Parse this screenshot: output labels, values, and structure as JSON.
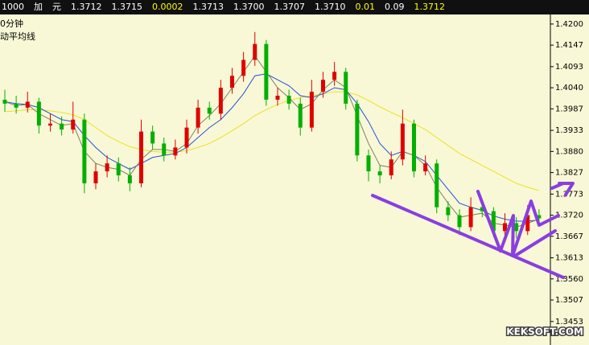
{
  "header": {
    "items": [
      {
        "text": "1000",
        "color": "#ffffff"
      },
      {
        "text": "加",
        "color": "#ffffff"
      },
      {
        "text": "元",
        "color": "#ffffff"
      },
      {
        "text": "1.3712",
        "color": "#ffffff"
      },
      {
        "text": "1.3715",
        "color": "#ffffff"
      },
      {
        "text": "0.0002",
        "color": "#ffff00"
      },
      {
        "text": "1.3713",
        "color": "#ffffff"
      },
      {
        "text": "1.3700",
        "color": "#ffffff"
      },
      {
        "text": "1.3707",
        "color": "#ffffff"
      },
      {
        "text": "1.3710",
        "color": "#ffffff"
      },
      {
        "text": "0.01",
        "color": "#ffff00"
      },
      {
        "text": "0.09",
        "color": "#ffffff"
      },
      {
        "text": "1.3712",
        "color": "#ffff00"
      }
    ]
  },
  "chart_data": {
    "type": "candlestick",
    "annotations": [
      "0分钟",
      "动平均线"
    ],
    "watermark": "KEKSOFT.COM",
    "up_color": "#e00000",
    "down_color": "#00b000",
    "open": [
      1.401,
      1.4,
      1.399,
      1.4005,
      1.3945,
      1.395,
      1.3935,
      1.396,
      1.38,
      1.383,
      1.385,
      1.382,
      1.38,
      1.393,
      1.39,
      1.387,
      1.389,
      1.394,
      1.399,
      1.3975,
      1.404,
      1.407,
      1.411,
      1.415,
      1.401,
      1.402,
      1.4,
      1.394,
      1.403,
      1.406,
      1.408,
      1.4,
      1.387,
      1.383,
      1.382,
      1.386,
      1.395,
      1.383,
      1.385,
      1.374,
      1.372,
      1.369,
      1.374,
      1.373,
      1.368,
      1.37,
      1.368,
      1.372
    ],
    "high": [
      1.4035,
      1.402,
      1.403,
      1.4015,
      1.3975,
      1.3968,
      1.4005,
      1.3975,
      1.385,
      1.387,
      1.3865,
      1.384,
      1.396,
      1.3945,
      1.3915,
      1.391,
      1.396,
      1.401,
      1.4005,
      1.406,
      1.409,
      1.413,
      1.418,
      1.416,
      1.404,
      1.4035,
      1.4015,
      1.406,
      1.408,
      1.4105,
      1.409,
      1.401,
      1.3885,
      1.3845,
      1.388,
      1.3985,
      1.396,
      1.387,
      1.386,
      1.3755,
      1.3735,
      1.3765,
      1.3755,
      1.374,
      1.3725,
      1.3715,
      1.3745,
      1.3735
    ],
    "low": [
      1.398,
      1.3975,
      1.3978,
      1.3925,
      1.393,
      1.392,
      1.3925,
      1.3775,
      1.3785,
      1.3815,
      1.3805,
      1.378,
      1.379,
      1.3885,
      1.3855,
      1.386,
      1.3875,
      1.3925,
      1.396,
      1.396,
      1.4025,
      1.4055,
      1.4095,
      1.3995,
      1.3995,
      1.3985,
      1.392,
      1.393,
      1.4015,
      1.4045,
      1.3985,
      1.3855,
      1.3805,
      1.38,
      1.381,
      1.3845,
      1.3815,
      1.382,
      1.3725,
      1.3705,
      1.367,
      1.368,
      1.3715,
      1.3665,
      1.3668,
      1.3662,
      1.367,
      1.37
    ],
    "close": [
      1.4,
      1.399,
      1.4005,
      1.3945,
      1.395,
      1.3935,
      1.396,
      1.38,
      1.383,
      1.385,
      1.382,
      1.38,
      1.393,
      1.39,
      1.387,
      1.389,
      1.394,
      1.399,
      1.3975,
      1.404,
      1.407,
      1.411,
      1.415,
      1.401,
      1.402,
      1.4,
      1.394,
      1.403,
      1.406,
      1.408,
      1.4,
      1.387,
      1.383,
      1.382,
      1.386,
      1.395,
      1.383,
      1.385,
      1.374,
      1.372,
      1.369,
      1.374,
      1.373,
      1.368,
      1.37,
      1.368,
      1.372,
      1.3712
    ],
    "series": [
      {
        "color": "#f0e020",
        "values": [
          1.398,
          1.3982,
          1.3985,
          1.3985,
          1.3982,
          1.3978,
          1.3972,
          1.396,
          1.394,
          1.392,
          1.3905,
          1.3892,
          1.3885,
          1.388,
          1.3878,
          1.3878,
          1.3882,
          1.389,
          1.39,
          1.3915,
          1.3932,
          1.395,
          1.397,
          1.3985,
          1.3998,
          1.4008,
          1.4015,
          1.402,
          1.4025,
          1.403,
          1.403,
          1.4022,
          1.4008,
          1.3992,
          1.3978,
          1.3965,
          1.395,
          1.3935,
          1.3915,
          1.3895,
          1.3875,
          1.386,
          1.3845,
          1.383,
          1.3815,
          1.38,
          1.379,
          1.3782
        ]
      },
      {
        "color": "#2050e0",
        "values": [
          1.4005,
          1.4,
          1.3998,
          1.399,
          1.3975,
          1.396,
          1.3955,
          1.392,
          1.389,
          1.3865,
          1.385,
          1.3835,
          1.385,
          1.3865,
          1.387,
          1.3875,
          1.389,
          1.3915,
          1.394,
          1.396,
          1.399,
          1.4025,
          1.407,
          1.4075,
          1.406,
          1.4045,
          1.402,
          1.4015,
          1.4025,
          1.404,
          1.4035,
          1.4,
          1.3955,
          1.39,
          1.387,
          1.388,
          1.387,
          1.3855,
          1.382,
          1.3785,
          1.375,
          1.374,
          1.3732,
          1.3718,
          1.371,
          1.3705,
          1.3705,
          1.3708
        ]
      },
      {
        "color": "#808060",
        "values": [
          1.4005,
          1.3995,
          1.3998,
          1.3975,
          1.396,
          1.3945,
          1.395,
          1.388,
          1.385,
          1.384,
          1.3835,
          1.382,
          1.386,
          1.3885,
          1.3885,
          1.388,
          1.39,
          1.3945,
          1.397,
          1.4,
          1.404,
          1.408,
          1.412,
          1.408,
          1.404,
          1.4015,
          1.3985,
          1.4,
          1.4035,
          1.406,
          1.404,
          1.397,
          1.39,
          1.3845,
          1.384,
          1.388,
          1.387,
          1.3845,
          1.379,
          1.375,
          1.3715,
          1.372,
          1.3725,
          1.37,
          1.3695,
          1.369,
          1.37,
          1.371
        ]
      }
    ],
    "ylim": [
      1.3394,
      1.4224
    ],
    "yticks": [
      {
        "value": 1.42,
        "label": "1.4200"
      },
      1.4147,
      1.4093,
      {
        "value": 1.404,
        "label": "1.4040"
      },
      1.3987,
      1.3933,
      {
        "value": 1.388,
        "label": "1.3880"
      },
      1.3827,
      1.3773,
      {
        "value": 1.372,
        "label": "1.3720"
      },
      1.3667,
      1.3613,
      {
        "value": 1.356,
        "label": "1.3560"
      },
      1.3507,
      1.3453
    ]
  }
}
